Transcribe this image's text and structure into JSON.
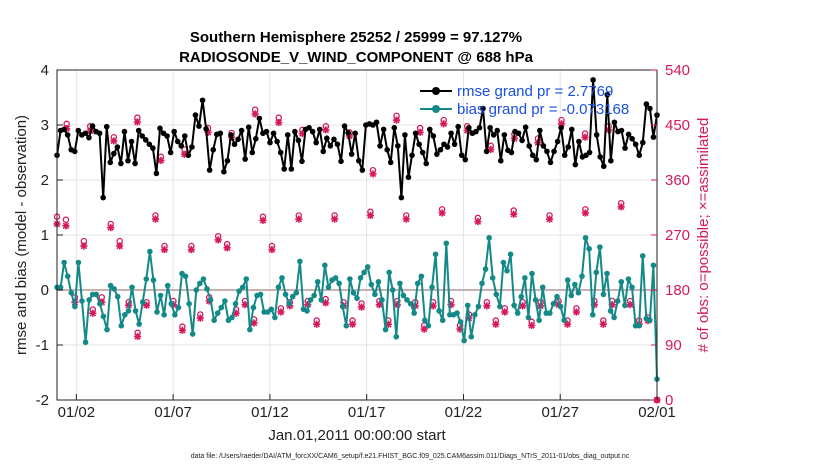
{
  "chart_data": {
    "type": "line",
    "title": "Southern Hemisphere 25252 / 25999 = 97.127%",
    "subtitle": "RADIOSONDE_V_WIND_COMPONENT @ 688 hPa",
    "xlabel": "Jan.01,2011 00:00:00 start",
    "ylabel": "rmse and bias (model - observation)",
    "ylabel_right": "# of obs: o=possible; ×=assimilated",
    "footer": "data file: /Users/raeder/DAI/ATM_forcXX/CAM6_setup/f.e21.FHIST_BGC.f09_025.CAM6assim.011/Diags_NTrS_2011-01/obs_diag_output.nc",
    "xticks": [
      "01/02",
      "01/07",
      "01/12",
      "01/17",
      "01/22",
      "01/27",
      "02/01"
    ],
    "xtick_days": [
      1,
      6,
      11,
      16,
      21,
      26,
      31
    ],
    "xlim": [
      0,
      31
    ],
    "ylim": [
      -2,
      4
    ],
    "yticks": [
      "-2",
      "-1",
      "0",
      "1",
      "2",
      "3",
      "4"
    ],
    "ylim_right": [
      0,
      540
    ],
    "yticks_right": [
      "0",
      "90",
      "180",
      "270",
      "360",
      "450",
      "540"
    ],
    "zero_line": 0,
    "grid": true,
    "legend_position": "top-right",
    "series": [
      {
        "name": "rmse grand pr = 2.7769",
        "color": "#000000",
        "axis": "left",
        "marker": "filled-circle",
        "values": [
          2.45,
          2.9,
          2.92,
          2.82,
          2.55,
          2.52,
          2.9,
          2.82,
          2.85,
          2.77,
          2.98,
          2.88,
          2.85,
          1.68,
          2.97,
          2.32,
          2.48,
          2.6,
          2.3,
          2.88,
          2.35,
          2.7,
          2.3,
          2.9,
          2.8,
          2.73,
          2.65,
          2.58,
          2.12,
          2.94,
          2.85,
          2.8,
          2.5,
          2.88,
          2.7,
          2.62,
          2.8,
          2.45,
          2.6,
          3.18,
          2.98,
          3.45,
          2.93,
          2.18,
          2.55,
          2.83,
          2.85,
          2.15,
          2.35,
          2.82,
          2.65,
          2.74,
          2.9,
          2.38,
          2.96,
          2.5,
          2.75,
          3.12,
          2.85,
          2.88,
          2.68,
          2.85,
          2.7,
          2.5,
          2.2,
          2.82,
          2.2,
          2.88,
          2.72,
          2.34,
          2.92,
          2.95,
          2.88,
          2.68,
          2.92,
          2.52,
          2.76,
          2.62,
          2.74,
          2.65,
          2.34,
          2.98,
          2.86,
          2.47,
          2.85,
          2.35,
          2.18,
          3.0,
          3.02,
          3.0,
          3.05,
          2.62,
          2.92,
          2.55,
          2.32,
          2.95,
          2.62,
          1.68,
          2.82,
          2.05,
          2.45,
          2.85,
          2.65,
          2.5,
          2.3,
          2.92,
          2.8,
          2.47,
          2.55,
          2.65,
          2.6,
          2.85,
          2.65,
          2.97,
          2.45,
          2.37,
          2.95,
          2.85,
          2.88,
          2.95,
          3.3,
          2.52,
          2.95,
          2.82,
          2.9,
          2.35,
          2.82,
          2.54,
          2.5,
          2.88,
          2.85,
          2.72,
          2.96,
          2.62,
          2.45,
          2.37,
          2.9,
          2.62,
          2.52,
          2.32,
          2.52,
          2.7,
          2.95,
          2.45,
          2.6,
          2.92,
          2.28,
          2.7,
          2.42,
          2.45,
          2.5,
          3.82,
          2.82,
          2.42,
          2.25,
          3.55,
          2.35,
          3.05,
          2.88,
          2.9,
          2.58,
          2.83,
          2.75,
          2.65,
          2.45,
          2.68,
          3.38,
          3.3,
          2.78,
          3.18
        ]
      },
      {
        "name": "bias grand pr = -0.073168",
        "color": "#138a88",
        "axis": "left",
        "marker": "filled-circle",
        "values": [
          0.05,
          0.05,
          0.5,
          0.25,
          -0.05,
          -0.3,
          0.5,
          -0.2,
          -0.95,
          -0.18,
          -0.08,
          -0.08,
          -0.25,
          -0.48,
          -0.72,
          0.08,
          0.02,
          -0.12,
          -0.65,
          -0.45,
          -0.38,
          0.05,
          -0.38,
          -0.62,
          -0.22,
          0.2,
          0.7,
          0.18,
          -0.4,
          -0.1,
          -0.45,
          0.08,
          -0.25,
          -0.45,
          -0.32,
          0.3,
          0.25,
          -0.25,
          -0.8,
          0.0,
          0.12,
          0.2,
          0.02,
          -0.18,
          -0.55,
          -0.42,
          -0.32,
          -0.2,
          -0.55,
          -0.5,
          -0.25,
          -0.02,
          0.05,
          0.2,
          -0.72,
          -0.32,
          -0.1,
          -0.08,
          -0.4,
          -0.4,
          -0.35,
          -0.5,
          0.05,
          0.22,
          -0.08,
          -0.25,
          -0.12,
          -0.05,
          0.52,
          -0.35,
          -0.38,
          -0.18,
          -0.1,
          0.15,
          -0.18,
          0.45,
          0.05,
          0.18,
          0.22,
          0.12,
          -0.3,
          -0.65,
          0.2,
          -0.05,
          -0.15,
          0.22,
          0.32,
          0.42,
          0.1,
          -0.08,
          0.15,
          -0.18,
          -0.72,
          0.32,
          0.0,
          -0.85,
          0.12,
          -0.1,
          -0.18,
          -0.25,
          -0.42,
          0.12,
          0.25,
          -0.55,
          -0.65,
          0.05,
          0.65,
          -0.38,
          -0.55,
          0.85,
          -0.45,
          -0.45,
          -0.42,
          -0.58,
          -0.92,
          -0.28,
          -0.85,
          -0.45,
          -0.3,
          0.12,
          0.38,
          0.95,
          0.22,
          -0.08,
          -0.3,
          0.5,
          0.35,
          0.65,
          -0.28,
          -0.42,
          -0.12,
          0.22,
          -0.5,
          0.3,
          -0.18,
          -0.55,
          0.05,
          -0.42,
          -0.42,
          -0.25,
          -0.12,
          -0.3,
          -0.55,
          0.18,
          -0.1,
          0.1,
          -0.05,
          0.25,
          0.95,
          0.75,
          -0.45,
          0.32,
          0.78,
          -0.08,
          0.3,
          -0.38,
          -0.5,
          -0.2,
          0.15,
          -0.28,
          0.2,
          0.05,
          -0.65,
          -0.65,
          0.62,
          -0.52,
          -0.55,
          0.45,
          -1.62
        ]
      }
    ],
    "obs_possible": [
      300,
      295,
      168,
      260,
      148,
      168,
      288,
      260,
      160,
      110,
      160,
      302,
      252,
      162,
      120,
      252,
      140,
      168,
      268,
      255,
      148,
      162,
      132,
      300,
      252,
      150,
      160,
      302,
      162,
      130,
      165,
      302,
      160,
      130,
      158,
      308,
      162,
      130,
      162,
      302,
      160,
      122,
      160,
      312,
      162,
      122,
      140,
      298,
      160,
      130,
      150,
      310,
      160,
      128,
      160,
      302,
      162,
      130,
      150,
      312,
      162,
      130,
      162,
      322,
      162,
      130,
      135,
      0
    ],
    "obs_assimilated": [
      288,
      285,
      160,
      252,
      142,
      160,
      282,
      252,
      155,
      104,
      155,
      296,
      246,
      156,
      114,
      246,
      134,
      162,
      262,
      249,
      142,
      156,
      126,
      294,
      246,
      144,
      154,
      296,
      156,
      124,
      159,
      296,
      154,
      124,
      152,
      302,
      156,
      124,
      156,
      296,
      154,
      116,
      154,
      306,
      156,
      116,
      134,
      292,
      154,
      124,
      144,
      304,
      154,
      122,
      154,
      296,
      156,
      124,
      144,
      306,
      156,
      124,
      156,
      316,
      156,
      124,
      130,
      0
    ],
    "obs_upper_possible": [
      452,
      448,
      430,
      462,
      398,
      410,
      445,
      437,
      475,
      462,
      442,
      448,
      438,
      376,
      465,
      445,
      458,
      448,
      416,
      435,
      428,
      458,
      436,
      448
    ],
    "obs_upper_assimilated": [
      444,
      440,
      424,
      455,
      392,
      402,
      438,
      430,
      468,
      454,
      436,
      442,
      432,
      370,
      458,
      438,
      452,
      441,
      410,
      428,
      421,
      452,
      430,
      442
    ]
  }
}
